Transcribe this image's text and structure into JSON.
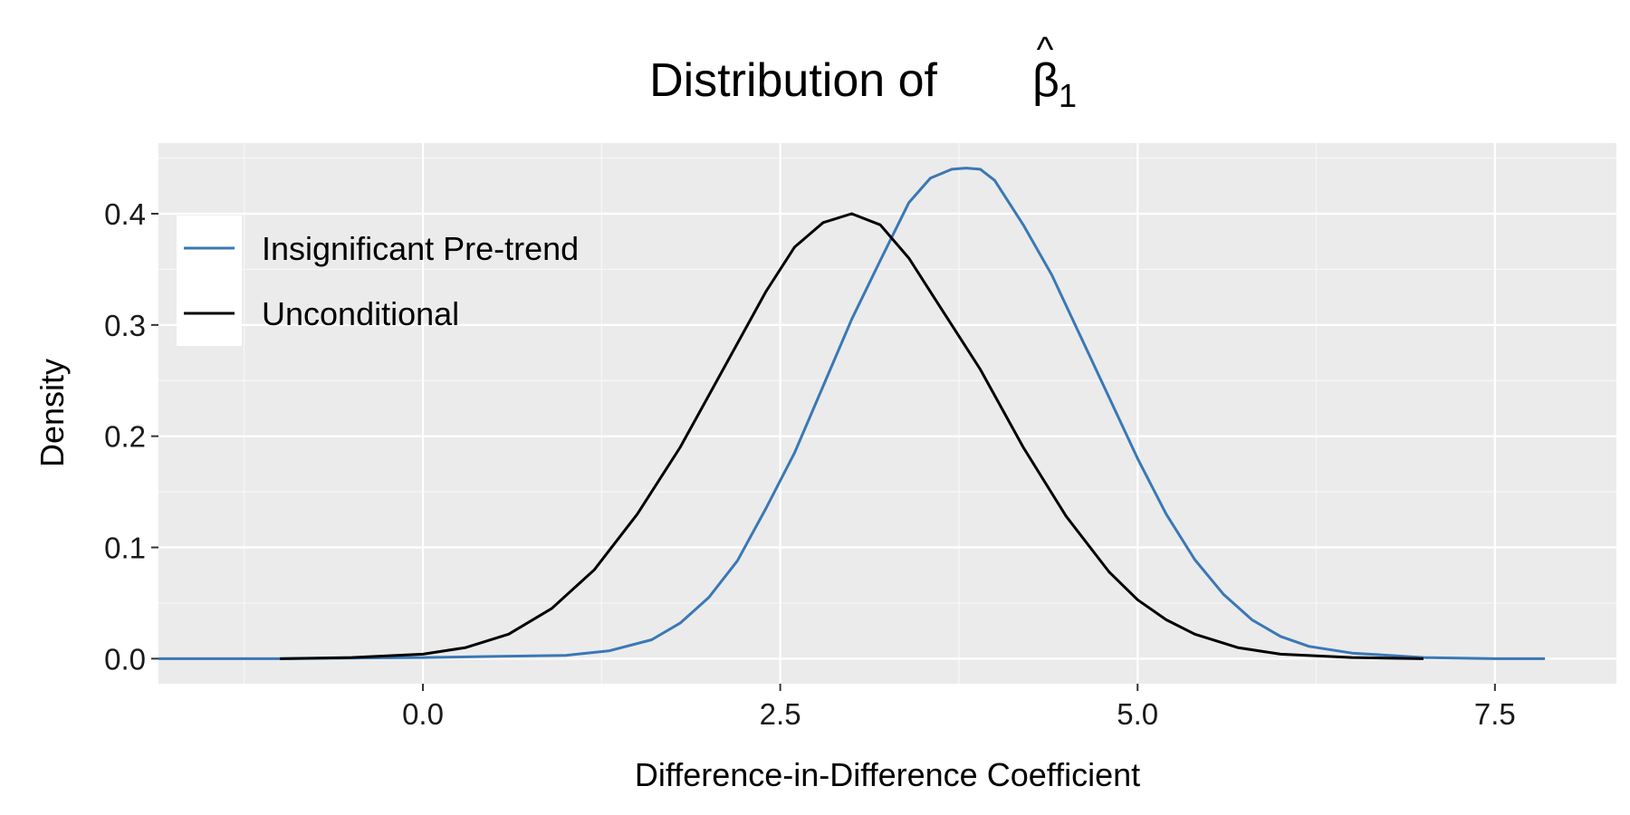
{
  "chart_data": {
    "type": "line",
    "title": "Distribution of",
    "title_symbol": "β",
    "title_hat": "^",
    "title_subscript": "1",
    "xlabel": "Difference-in-Difference Coefficient",
    "ylabel": "Density",
    "xlim": [
      -1.85,
      8.35
    ],
    "ylim": [
      -0.0225,
      0.4635
    ],
    "x_ticks": [
      0.0,
      2.5,
      5.0,
      7.5
    ],
    "x_tick_labels": [
      "0.0",
      "2.5",
      "5.0",
      "7.5"
    ],
    "y_ticks": [
      0.0,
      0.1,
      0.2,
      0.3,
      0.4
    ],
    "y_tick_labels": [
      "0.0",
      "0.1",
      "0.2",
      "0.3",
      "0.4"
    ],
    "grid": true,
    "legend_position": "top-left",
    "panel_background": "#EBEBEB",
    "series": [
      {
        "name": "Insignificant Pre-trend",
        "color": "#3A78B5",
        "x": [
          -1.85,
          -1.0,
          0.0,
          0.5,
          1.0,
          1.3,
          1.6,
          1.8,
          2.0,
          2.2,
          2.4,
          2.6,
          2.8,
          3.0,
          3.2,
          3.4,
          3.55,
          3.7,
          3.8,
          3.9,
          4.0,
          4.2,
          4.4,
          4.6,
          4.8,
          5.0,
          5.2,
          5.4,
          5.6,
          5.8,
          6.0,
          6.2,
          6.5,
          7.0,
          7.5,
          7.85
        ],
        "y": [
          0.0,
          0.0,
          0.001,
          0.002,
          0.003,
          0.007,
          0.017,
          0.032,
          0.055,
          0.088,
          0.135,
          0.185,
          0.245,
          0.305,
          0.358,
          0.41,
          0.432,
          0.44,
          0.441,
          0.44,
          0.43,
          0.39,
          0.345,
          0.29,
          0.235,
          0.18,
          0.13,
          0.089,
          0.058,
          0.035,
          0.02,
          0.011,
          0.005,
          0.001,
          0.0,
          0.0
        ]
      },
      {
        "name": "Unconditional",
        "color": "#000000",
        "x": [
          -1.0,
          -0.5,
          0.0,
          0.3,
          0.6,
          0.9,
          1.2,
          1.5,
          1.8,
          2.1,
          2.4,
          2.6,
          2.8,
          3.0,
          3.2,
          3.4,
          3.6,
          3.9,
          4.2,
          4.5,
          4.8,
          5.0,
          5.2,
          5.4,
          5.7,
          6.0,
          6.5,
          7.0
        ],
        "y": [
          0.0,
          0.001,
          0.004,
          0.01,
          0.022,
          0.045,
          0.08,
          0.13,
          0.19,
          0.26,
          0.33,
          0.37,
          0.392,
          0.4,
          0.39,
          0.36,
          0.32,
          0.26,
          0.19,
          0.128,
          0.078,
          0.053,
          0.035,
          0.022,
          0.01,
          0.004,
          0.001,
          0.0
        ]
      }
    ]
  }
}
